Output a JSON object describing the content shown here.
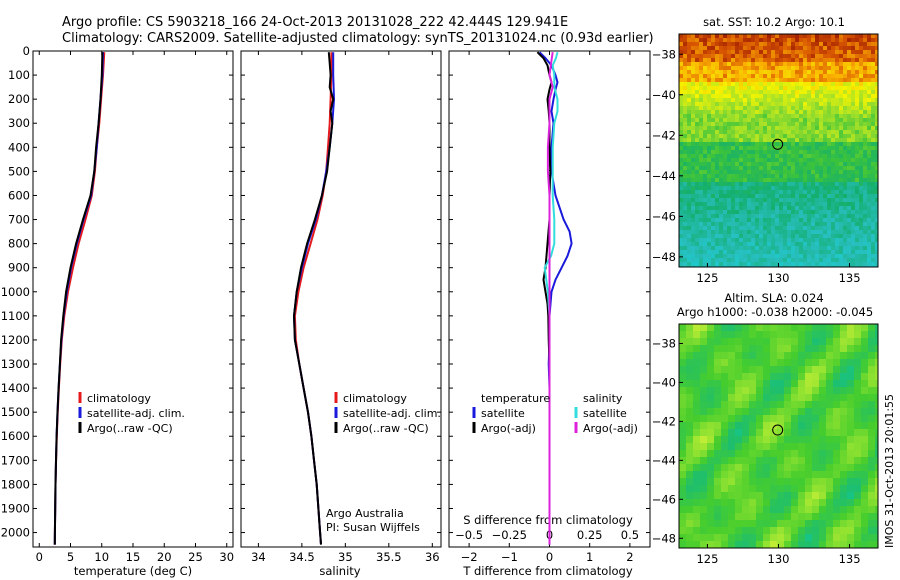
{
  "header": {
    "line1": "Argo profile: CS 5903218_166 24-Oct-2013 20131028_222 42.444S 129.941E",
    "line2": "Climatology: CARS2009. Satellite-adjusted climatology: synTS_20131024.nc (0.93d earlier)"
  },
  "watermark": "IMOS 31-Oct-2013 20:01:55",
  "credit": {
    "line1": "Argo Australia",
    "line2": "PI: Susan Wijffels"
  },
  "colors": {
    "climatology": "#e41a1c",
    "satellite": "#1a1adc",
    "argo": "#000000",
    "salinity_sat": "#33dddd",
    "salinity_argo": "#dd22dd"
  },
  "chart_data": [
    {
      "type": "line",
      "title": "",
      "xlabel": "temperature (deg C)",
      "ylabel": "",
      "xlim": [
        -1,
        31
      ],
      "ylim": [
        2060,
        0
      ],
      "xticks": [
        0,
        5,
        10,
        15,
        20,
        25,
        30
      ],
      "yticks": [
        0,
        100,
        200,
        300,
        400,
        500,
        600,
        700,
        800,
        900,
        1000,
        1100,
        1200,
        1300,
        1400,
        1500,
        1600,
        1700,
        1800,
        1900,
        2000
      ],
      "legend": [
        "climatology",
        "satellite-adj. clim.",
        "Argo(..raw -QC)"
      ],
      "legend_position": "lower-middle",
      "series": [
        {
          "name": "climatology",
          "color": "#e41a1c",
          "depth": [
            5,
            100,
            200,
            300,
            400,
            500,
            600,
            700,
            800,
            900,
            1000,
            1100,
            1200,
            1300,
            1400,
            1500,
            1600,
            1700,
            1800,
            1900,
            2000,
            2050
          ],
          "values": [
            10.4,
            10.2,
            9.9,
            9.6,
            9.2,
            8.9,
            8.4,
            7.4,
            6.3,
            5.4,
            4.6,
            4.0,
            3.6,
            3.35,
            3.15,
            2.95,
            2.8,
            2.7,
            2.6,
            2.55,
            2.5,
            2.48
          ]
        },
        {
          "name": "satellite-adj. clim.",
          "color": "#1a1adc",
          "depth": [
            5,
            100,
            200,
            300,
            400,
            500,
            600,
            700,
            800,
            900,
            1000,
            1100,
            1200,
            1300,
            1400,
            1500,
            1600,
            1700,
            1800,
            1900,
            2000,
            2050
          ],
          "values": [
            10.2,
            10.1,
            9.8,
            9.5,
            9.2,
            8.8,
            8.3,
            7.1,
            6.0,
            5.1,
            4.4,
            3.9,
            3.55,
            3.3,
            3.1,
            2.92,
            2.78,
            2.68,
            2.6,
            2.55,
            2.5,
            2.48
          ]
        },
        {
          "name": "Argo(..raw -QC)",
          "color": "#000000",
          "depth": [
            5,
            100,
            200,
            300,
            400,
            500,
            600,
            700,
            800,
            900,
            1000,
            1100,
            1200,
            1300,
            1400,
            1500,
            1600,
            1700,
            1800,
            1900,
            2000,
            2050
          ],
          "values": [
            10.1,
            10.0,
            9.8,
            9.5,
            9.1,
            8.8,
            8.2,
            7.0,
            5.9,
            5.0,
            4.3,
            3.85,
            3.5,
            3.3,
            3.1,
            2.92,
            2.78,
            2.68,
            2.6,
            2.55,
            2.5,
            2.48
          ]
        }
      ]
    },
    {
      "type": "line",
      "title": "",
      "xlabel": "salinity",
      "ylabel": "",
      "xlim": [
        33.8,
        36.1
      ],
      "ylim": [
        2060,
        0
      ],
      "xticks": [
        34,
        34.5,
        35,
        35.5,
        36
      ],
      "legend": [
        "climatology",
        "satellite-adj. clim.",
        "Argo(..raw -QC)"
      ],
      "legend_position": "lower-middle",
      "series": [
        {
          "name": "climatology",
          "color": "#e41a1c",
          "depth": [
            5,
            100,
            200,
            300,
            400,
            500,
            600,
            700,
            800,
            900,
            1000,
            1100,
            1200,
            1300,
            1400,
            1500,
            1600,
            1700,
            1800,
            1900,
            2000,
            2050
          ],
          "values": [
            34.84,
            34.84,
            34.83,
            34.82,
            34.8,
            34.78,
            34.74,
            34.68,
            34.6,
            34.52,
            34.46,
            34.42,
            34.43,
            34.47,
            34.52,
            34.57,
            34.61,
            34.64,
            34.67,
            34.69,
            34.71,
            34.72
          ]
        },
        {
          "name": "satellite-adj. clim.",
          "color": "#1a1adc",
          "depth": [
            5,
            100,
            200,
            300,
            400,
            500,
            600,
            700,
            800,
            900,
            1000,
            1100,
            1200,
            1300,
            1400,
            1500,
            1600,
            1700,
            1800,
            1900,
            2000,
            2050
          ],
          "values": [
            34.86,
            34.86,
            34.87,
            34.85,
            34.82,
            34.78,
            34.73,
            34.66,
            34.57,
            34.5,
            34.44,
            34.41,
            34.42,
            34.47,
            34.52,
            34.57,
            34.61,
            34.64,
            34.67,
            34.69,
            34.71,
            34.72
          ]
        },
        {
          "name": "Argo(..raw -QC)",
          "color": "#000000",
          "depth": [
            5,
            50,
            100,
            150,
            200,
            250,
            300,
            400,
            500,
            600,
            700,
            800,
            900,
            1000,
            1100,
            1200,
            1300,
            1400,
            1500,
            1600,
            1700,
            1800,
            1900,
            2000,
            2050
          ],
          "values": [
            34.81,
            34.82,
            34.83,
            34.82,
            34.86,
            34.83,
            34.85,
            34.82,
            34.79,
            34.73,
            34.65,
            34.56,
            34.49,
            34.44,
            34.41,
            34.42,
            34.47,
            34.52,
            34.57,
            34.61,
            34.64,
            34.67,
            34.69,
            34.71,
            34.72
          ]
        }
      ]
    },
    {
      "type": "line",
      "title": "",
      "xlabel": "T difference from climatology",
      "ylabel": "",
      "xlim": [
        -2.5,
        2.5
      ],
      "ylim": [
        2060,
        0
      ],
      "xticks": [
        -2,
        -1,
        0,
        1,
        2
      ],
      "secondary_xlabel": "S difference from climatology",
      "secondary_xlim": [
        -0.625,
        0.625
      ],
      "secondary_xticks": [
        -0.5,
        -0.25,
        0,
        0.25,
        0.5
      ],
      "legend": [
        "temperature",
        "satellite",
        "Argo(-adj)",
        "salinity",
        "satellite",
        "Argo(-adj)"
      ],
      "legend_position": "lower-middle",
      "series": [
        {
          "name": "temperature satellite",
          "color": "#1a1adc",
          "depth": [
            5,
            30,
            60,
            100,
            130,
            160,
            200,
            250,
            300,
            400,
            500,
            600,
            700,
            750,
            800,
            850,
            900,
            950,
            1000,
            1100,
            1200,
            1300,
            1400,
            1500,
            1600,
            1800,
            2000,
            2050
          ],
          "values": [
            -0.25,
            -0.1,
            0.05,
            0.15,
            0.2,
            0.15,
            0.1,
            0.05,
            0.1,
            0.05,
            0.05,
            0.15,
            0.35,
            0.5,
            0.55,
            0.45,
            0.3,
            0.15,
            0.05,
            0.0,
            0.0,
            -0.02,
            0.0,
            0.0,
            0.0,
            0.0,
            0.0,
            0.0
          ]
        },
        {
          "name": "temperature Argo(-adj)",
          "color": "#000000",
          "depth": [
            5,
            30,
            60,
            100,
            130,
            160,
            200,
            250,
            300,
            400,
            500,
            600,
            700,
            800,
            900,
            950,
            1000,
            1050,
            1100,
            1200,
            1300,
            1400,
            1600,
            1800,
            2000,
            2050
          ],
          "values": [
            -0.3,
            -0.15,
            -0.05,
            0.0,
            0.05,
            0.0,
            -0.05,
            -0.02,
            0.0,
            0.0,
            0.02,
            0.0,
            0.0,
            -0.05,
            -0.1,
            -0.15,
            -0.1,
            -0.05,
            -0.03,
            -0.02,
            0.0,
            0.0,
            0.0,
            0.0,
            0.0,
            0.0
          ]
        },
        {
          "name": "salinity satellite",
          "color": "#33dddd",
          "depth": [
            5,
            30,
            60,
            100,
            150,
            200,
            250,
            300,
            400,
            500,
            600,
            700,
            800,
            850,
            900,
            950,
            1000,
            1100,
            1200,
            1300,
            1400,
            1600,
            1800,
            2000,
            2050
          ],
          "values": [
            0.05,
            0.04,
            0.02,
            0.03,
            0.03,
            0.05,
            0.05,
            0.03,
            0.02,
            0.02,
            0.02,
            0.03,
            0.03,
            0.01,
            -0.03,
            -0.02,
            -0.01,
            0.0,
            0.0,
            0.0,
            0.0,
            0.0,
            0.0,
            0.0,
            0.0
          ]
        },
        {
          "name": "salinity Argo(-adj)",
          "color": "#dd22dd",
          "depth": [
            5,
            50,
            100,
            150,
            200,
            300,
            400,
            500,
            600,
            700,
            800,
            900,
            1000,
            1200,
            1400,
            1600,
            1800,
            2000,
            2050
          ],
          "values": [
            0.02,
            0.01,
            0.0,
            0.02,
            0.0,
            0.0,
            -0.01,
            -0.01,
            0.0,
            0.0,
            0.0,
            0.0,
            0.0,
            0.0,
            0.0,
            0.0,
            0.0,
            0.0,
            0.0
          ]
        }
      ]
    },
    {
      "type": "heatmap",
      "title": "sat. SST: 10.2 Argo: 10.1",
      "xlim": [
        123,
        137
      ],
      "ylim": [
        -48.5,
        -37
      ],
      "xticks": [
        125,
        130,
        135
      ],
      "yticks": [
        -38,
        -40,
        -42,
        -44,
        -46,
        -48
      ],
      "marker": {
        "lon": 129.941,
        "lat": -42.444
      }
    },
    {
      "type": "heatmap",
      "title": "Altim. SLA: 0.024",
      "subtitle": "Argo h1000: -0.038 h2000: -0.045",
      "xlim": [
        123,
        137
      ],
      "ylim": [
        -48.5,
        -37
      ],
      "xticks": [
        125,
        130,
        135
      ],
      "yticks": [
        -38,
        -40,
        -42,
        -44,
        -46,
        -48
      ],
      "marker": {
        "lon": 129.941,
        "lat": -42.444
      }
    }
  ]
}
